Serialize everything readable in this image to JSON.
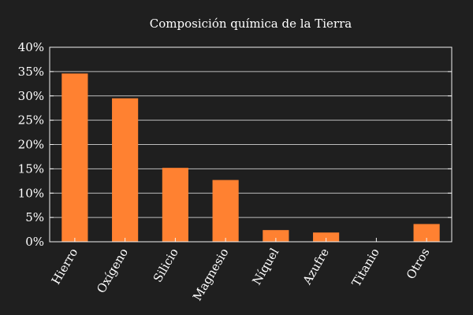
{
  "chart_data": {
    "type": "bar",
    "title": "Composición química de la Tierra",
    "categories": [
      "Hierro",
      "Oxígeno",
      "Silicio",
      "Magnesio",
      "Níquel",
      "Azufre",
      "Titanio",
      "Otros"
    ],
    "values": [
      34.6,
      29.5,
      15.2,
      12.7,
      2.4,
      1.9,
      0.05,
      3.65
    ],
    "y_ticks": [
      "0%",
      "5%",
      "10%",
      "15%",
      "20%",
      "25%",
      "30%",
      "35%",
      "40%"
    ],
    "ylim": [
      0,
      40
    ],
    "bar_color": "#ff8131",
    "background": "#1f1f1f",
    "grid": true,
    "xlabel": "",
    "ylabel": ""
  }
}
